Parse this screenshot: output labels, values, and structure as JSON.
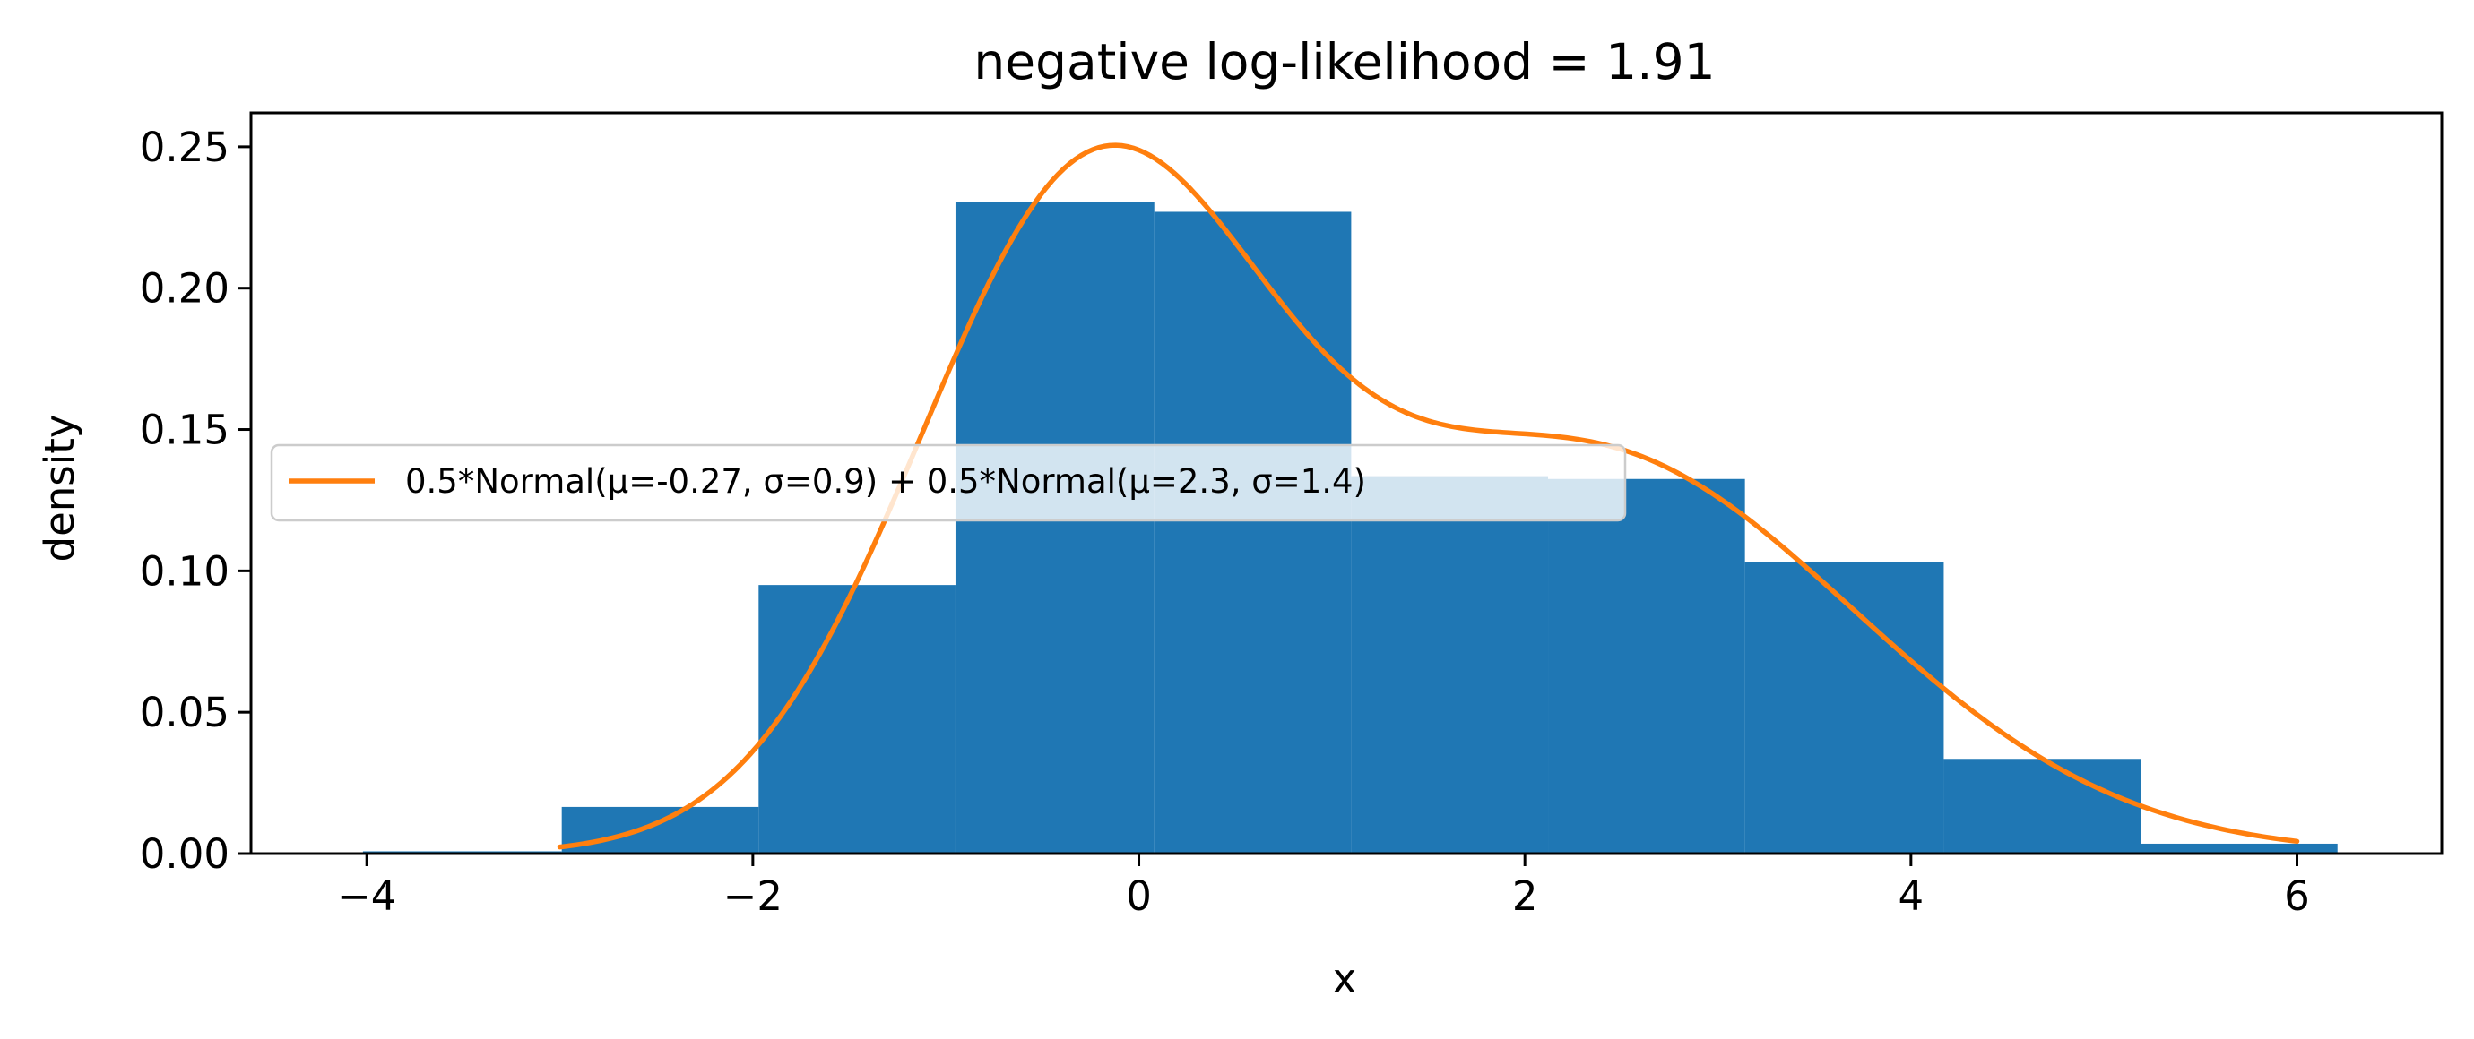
{
  "chart_data": {
    "type": "bar",
    "title": "negative log-likelihood = 1.91",
    "xlabel": "x",
    "ylabel": "density",
    "xlim": [
      -4.6,
      6.75
    ],
    "ylim": [
      0,
      0.262
    ],
    "grid": false,
    "legend_position": "center-left",
    "x_ticks": [
      {
        "value": -4,
        "label": "−4"
      },
      {
        "value": -2,
        "label": "−2"
      },
      {
        "value": 0,
        "label": "0"
      },
      {
        "value": 2,
        "label": "2"
      },
      {
        "value": 4,
        "label": "4"
      },
      {
        "value": 6,
        "label": "6"
      }
    ],
    "y_ticks": [
      {
        "value": 0,
        "label": "0.00"
      },
      {
        "value": 0.05,
        "label": "0.05"
      },
      {
        "value": 0.1,
        "label": "0.10"
      },
      {
        "value": 0.15,
        "label": "0.15"
      },
      {
        "value": 0.2,
        "label": "0.20"
      },
      {
        "value": 0.25,
        "label": "0.25"
      }
    ],
    "histogram": {
      "color": "#1f77b4",
      "bin_edges": [
        -4.02,
        -2.99,
        -1.97,
        -0.95,
        0.08,
        1.1,
        2.12,
        3.14,
        4.17,
        5.19,
        6.21
      ],
      "densities": [
        0.0008,
        0.0165,
        0.095,
        0.2305,
        0.227,
        0.1335,
        0.1325,
        0.103,
        0.0335,
        0.0035
      ]
    },
    "mixture": {
      "label": "0.5*Normal(μ=-0.27, σ=0.9) + 0.5*Normal(μ=2.3, σ=1.4)",
      "color": "#ff7f0e",
      "x_range": [
        -3,
        6
      ],
      "components": [
        {
          "weight": 0.5,
          "mu": -0.27,
          "sigma": 0.9
        },
        {
          "weight": 0.5,
          "mu": 2.3,
          "sigma": 1.4
        }
      ]
    }
  }
}
